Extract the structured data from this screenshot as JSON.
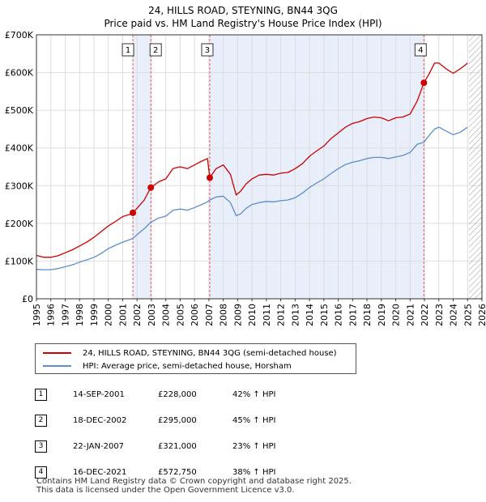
{
  "title": "24, HILLS ROAD, STEYNING, BN44 3QG",
  "subtitle": "Price paid vs. HM Land Registry's House Price Index (HPI)",
  "colors": {
    "price_line": "#cc0000",
    "hpi_line": "#5b8ecf",
    "shade": "#e8eefa",
    "marker_line": "#e06060",
    "grid": "#dddddd"
  },
  "chart_data": {
    "type": "line",
    "title": "24, HILLS ROAD, STEYNING, BN44 3QG",
    "subtitle": "Price paid vs. HM Land Registry's House Price Index (HPI)",
    "xlabel": "",
    "ylabel": "",
    "xlim": [
      1995.0,
      2026.0
    ],
    "ylim": [
      0,
      700000
    ],
    "x_ticks": [
      "1995",
      "1996",
      "1997",
      "1998",
      "1999",
      "2000",
      "2001",
      "2002",
      "2003",
      "2004",
      "2005",
      "2006",
      "2007",
      "2008",
      "2009",
      "2010",
      "2011",
      "2012",
      "2013",
      "2014",
      "2015",
      "2016",
      "2017",
      "2018",
      "2019",
      "2020",
      "2021",
      "2022",
      "2023",
      "2024",
      "2025",
      "2026"
    ],
    "y_ticks": [
      {
        "value": 0,
        "label": "£0"
      },
      {
        "value": 100000,
        "label": "£100K"
      },
      {
        "value": 200000,
        "label": "£200K"
      },
      {
        "value": 300000,
        "label": "£300K"
      },
      {
        "value": 400000,
        "label": "£400K"
      },
      {
        "value": 500000,
        "label": "£500K"
      },
      {
        "value": 600000,
        "label": "£600K"
      },
      {
        "value": 700000,
        "label": "£700K"
      }
    ],
    "grid": true,
    "future_hatch_start": 2025.1,
    "series": [
      {
        "name": "24, HILLS ROAD, STEYNING, BN44 3QG (semi-detached house)",
        "x": [
          1995.0,
          1995.5,
          1996.0,
          1996.5,
          1997.0,
          1997.5,
          1998.0,
          1998.5,
          1999.0,
          1999.5,
          2000.0,
          2000.5,
          2001.0,
          2001.5,
          2001.71,
          2002.0,
          2002.5,
          2002.96,
          2003.5,
          2004.0,
          2004.5,
          2005.0,
          2005.5,
          2006.0,
          2006.5,
          2006.9,
          2007.06,
          2007.5,
          2008.0,
          2008.5,
          2008.9,
          2009.2,
          2009.6,
          2010.0,
          2010.5,
          2011.0,
          2011.5,
          2012.0,
          2012.5,
          2013.0,
          2013.5,
          2014.0,
          2014.5,
          2015.0,
          2015.5,
          2016.0,
          2016.5,
          2017.0,
          2017.5,
          2018.0,
          2018.5,
          2019.0,
          2019.5,
          2020.0,
          2020.5,
          2021.0,
          2021.5,
          2021.96,
          2022.3,
          2022.7,
          2023.0,
          2023.5,
          2024.0,
          2024.5,
          2025.0
        ],
        "values": [
          115000,
          110000,
          110000,
          114000,
          122000,
          130000,
          140000,
          150000,
          163000,
          178000,
          193000,
          205000,
          218000,
          224000,
          228000,
          240000,
          262000,
          295000,
          310000,
          318000,
          345000,
          350000,
          345000,
          355000,
          365000,
          372000,
          321000,
          345000,
          355000,
          330000,
          275000,
          285000,
          305000,
          318000,
          328000,
          330000,
          328000,
          333000,
          335000,
          345000,
          358000,
          378000,
          392000,
          405000,
          425000,
          440000,
          455000,
          465000,
          470000,
          478000,
          482000,
          480000,
          472000,
          480000,
          482000,
          490000,
          525000,
          572750,
          595000,
          625000,
          625000,
          610000,
          598000,
          610000,
          625000
        ]
      },
      {
        "name": "HPI: Average price, semi-detached house, Horsham",
        "x": [
          1995.0,
          1995.5,
          1996.0,
          1996.5,
          1997.0,
          1997.5,
          1998.0,
          1998.5,
          1999.0,
          1999.5,
          2000.0,
          2000.5,
          2001.0,
          2001.5,
          2001.71,
          2002.0,
          2002.5,
          2002.96,
          2003.5,
          2004.0,
          2004.5,
          2005.0,
          2005.5,
          2006.0,
          2006.5,
          2006.9,
          2007.06,
          2007.5,
          2008.0,
          2008.5,
          2008.9,
          2009.2,
          2009.6,
          2010.0,
          2010.5,
          2011.0,
          2011.5,
          2012.0,
          2012.5,
          2013.0,
          2013.5,
          2014.0,
          2014.5,
          2015.0,
          2015.5,
          2016.0,
          2016.5,
          2017.0,
          2017.5,
          2018.0,
          2018.5,
          2019.0,
          2019.5,
          2020.0,
          2020.5,
          2021.0,
          2021.5,
          2021.96,
          2022.3,
          2022.7,
          2023.0,
          2023.5,
          2024.0,
          2024.5,
          2025.0
        ],
        "values": [
          78000,
          77000,
          77000,
          80000,
          85000,
          90000,
          97000,
          103000,
          110000,
          120000,
          133000,
          142000,
          150000,
          157000,
          160000,
          170000,
          186000,
          203000,
          214000,
          219000,
          235000,
          238000,
          235000,
          242000,
          250000,
          257000,
          262000,
          270000,
          272000,
          255000,
          220000,
          225000,
          240000,
          250000,
          255000,
          258000,
          257000,
          260000,
          262000,
          268000,
          280000,
          295000,
          307000,
          318000,
          332000,
          345000,
          356000,
          362000,
          366000,
          372000,
          375000,
          375000,
          372000,
          376000,
          380000,
          388000,
          410000,
          415000,
          432000,
          450000,
          455000,
          445000,
          435000,
          442000,
          455000
        ]
      }
    ],
    "transactions": [
      {
        "num": "1",
        "x": 2001.71,
        "value": 228000
      },
      {
        "num": "2",
        "x": 2002.96,
        "value": 295000
      },
      {
        "num": "3",
        "x": 2007.06,
        "value": 321000
      },
      {
        "num": "4",
        "x": 2021.96,
        "value": 572750
      }
    ]
  },
  "legend": {
    "price_label": "24, HILLS ROAD, STEYNING, BN44 3QG (semi-detached house)",
    "hpi_label": "HPI: Average price, semi-detached house, Horsham"
  },
  "transactions_table": [
    {
      "num": "1",
      "date": "14-SEP-2001",
      "price": "£228,000",
      "hpi": "42% ↑ HPI"
    },
    {
      "num": "2",
      "date": "18-DEC-2002",
      "price": "£295,000",
      "hpi": "45% ↑ HPI"
    },
    {
      "num": "3",
      "date": "22-JAN-2007",
      "price": "£321,000",
      "hpi": "23% ↑ HPI"
    },
    {
      "num": "4",
      "date": "16-DEC-2021",
      "price": "£572,750",
      "hpi": "38% ↑ HPI"
    }
  ],
  "footer": {
    "line1": "Contains HM Land Registry data © Crown copyright and database right 2025.",
    "line2": "This data is licensed under the Open Government Licence v3.0."
  }
}
